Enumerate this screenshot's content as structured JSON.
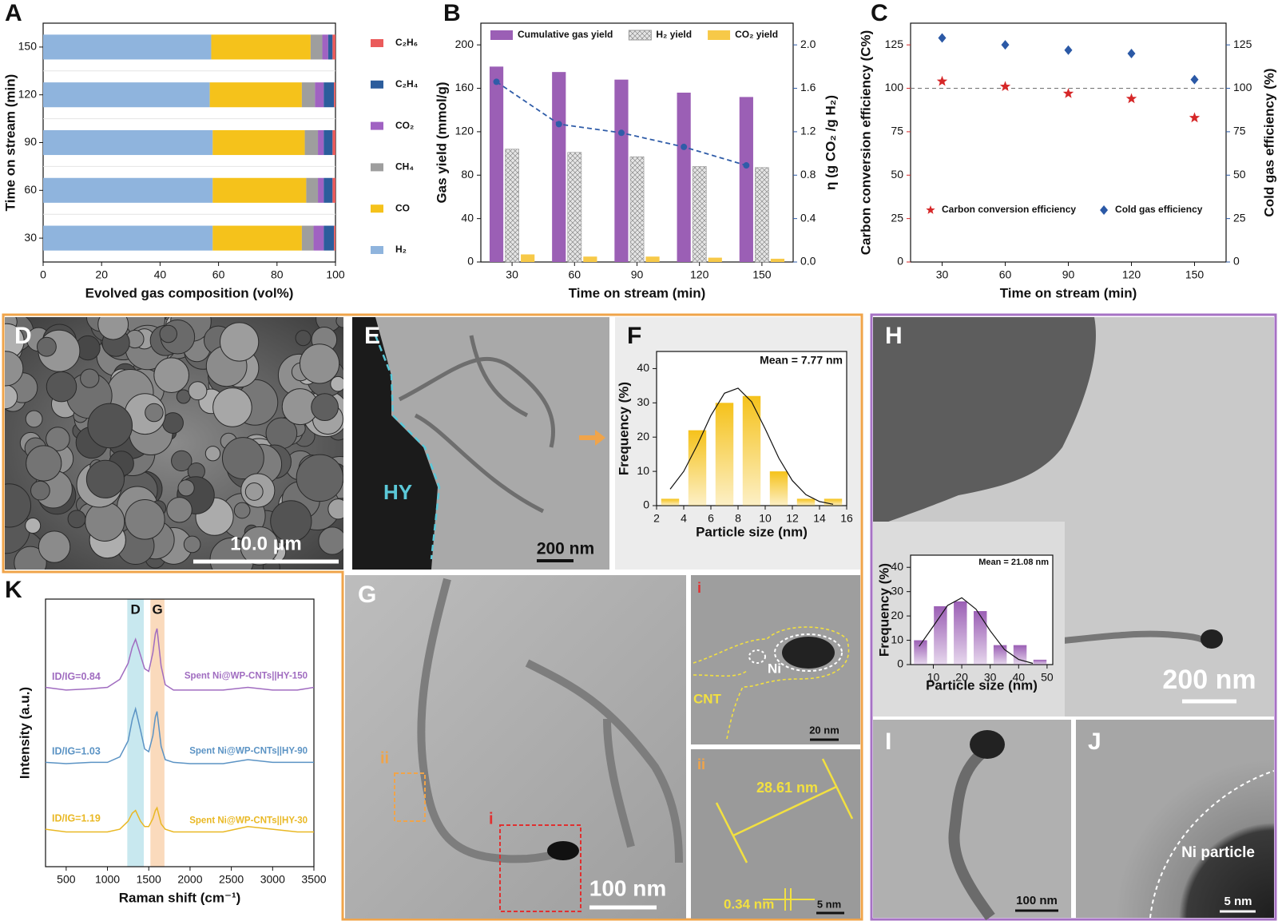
{
  "chart_data": [
    {
      "panel": "A",
      "type": "barh",
      "stacked": true,
      "categories": [
        "30",
        "60",
        "90",
        "120",
        "150"
      ],
      "xlabel": "Evolved gas composition (vol%)",
      "ylabel": "Time on stream (min)",
      "xlim": [
        0,
        100
      ],
      "xticks": [
        0,
        20,
        40,
        60,
        80,
        100
      ],
      "series": [
        {
          "name": "H₂",
          "color": "#8fb4dd",
          "values": [
            58,
            58,
            58,
            57,
            57.5
          ]
        },
        {
          "name": "CO",
          "color": "#f5c21b",
          "values": [
            30.5,
            32,
            31.5,
            31.5,
            34
          ]
        },
        {
          "name": "CH₄",
          "color": "#9e9e9e",
          "values": [
            4,
            4,
            4.5,
            4.5,
            4
          ]
        },
        {
          "name": "CO₂",
          "color": "#a062c2",
          "values": [
            3.5,
            2,
            2,
            3,
            2
          ]
        },
        {
          "name": "C₂H₄",
          "color": "#2c5d9c",
          "values": [
            3.5,
            3,
            3,
            3.5,
            1.5
          ]
        },
        {
          "name": "C₂H₆",
          "color": "#ea5b5b",
          "values": [
            0.5,
            1,
            1,
            0.5,
            1
          ]
        }
      ]
    },
    {
      "panel": "B",
      "type": "bar",
      "categories": [
        "30",
        "60",
        "90",
        "120",
        "150"
      ],
      "xlabel": "Time on stream (min)",
      "ylabel": "Gas yield (mmol/g)",
      "y2label": "η (g CO₂ /g H₂)",
      "ylim": [
        0,
        220
      ],
      "yticks": [
        0,
        40,
        80,
        120,
        160,
        200
      ],
      "y2lim": [
        0,
        2.2
      ],
      "y2ticks": [
        {
          "value": 0,
          "label": "0.0"
        },
        0.4,
        0.8,
        1.2,
        1.6,
        {
          "value": 2,
          "label": "2.0"
        }
      ],
      "legend": "top",
      "series": [
        {
          "name": "Cumulative gas yield",
          "color": "#9b5fb5",
          "values": [
            180,
            175,
            168,
            156,
            152
          ]
        },
        {
          "name": "H₂ yield",
          "color": "#e4e4e4",
          "pattern": "crosshatch",
          "values": [
            104,
            101,
            97,
            88,
            87
          ]
        },
        {
          "name": "CO₂ yield",
          "color": "#f7c948",
          "values": [
            7,
            5,
            5,
            4,
            3
          ]
        },
        {
          "type": "line",
          "axis": "y2",
          "color": "#2f5ca8",
          "dashed": true,
          "values": [
            1.66,
            1.27,
            1.19,
            1.06,
            0.89
          ]
        }
      ]
    },
    {
      "panel": "C",
      "type": "scatter",
      "categories": [
        "30",
        "60",
        "90",
        "120",
        "150"
      ],
      "xlabel": "Time on stream (min)",
      "ylabel": "Carbon conversion efficiency (C%)",
      "y2label": "Cold gas efficiency (%)",
      "ylim": [
        0,
        137.5
      ],
      "yticks": [
        0,
        25,
        50,
        75,
        100,
        125
      ],
      "y2lim": [
        0,
        137.5
      ],
      "y2ticks": [
        0,
        25,
        50,
        75,
        100,
        125
      ],
      "reference_line": 100,
      "legend": "bottom",
      "series": [
        {
          "name": "Carbon conversion efficiency",
          "color": "#d62728",
          "marker": "star",
          "values": [
            104,
            101,
            97,
            94,
            83
          ]
        },
        {
          "name": "Cold gas efficiency",
          "color": "#2b59a6",
          "marker": "diamond",
          "axis": "y2",
          "values": [
            129,
            125,
            122,
            120,
            105
          ]
        }
      ]
    },
    {
      "panel": "F",
      "type": "histogram",
      "bins": [
        2,
        4,
        6,
        8,
        10,
        12,
        14,
        16
      ],
      "values": [
        2,
        22,
        30,
        32,
        10,
        2,
        2
      ],
      "color": "#f5c21b",
      "xlim": [
        2,
        16
      ],
      "xticks": [
        2,
        4,
        6,
        8,
        10,
        12,
        14,
        16
      ],
      "ylim": [
        0,
        45
      ],
      "yticks": [
        0,
        10,
        20,
        30,
        40
      ],
      "xlabel": "Particle size (nm)",
      "ylabel": "Frequency (%)",
      "annotation": "Mean = 7.77 nm",
      "fit_curve": {
        "x": [
          3,
          4,
          5,
          6,
          7,
          8,
          9,
          10,
          11,
          12,
          13,
          14,
          15
        ],
        "y": [
          4.8,
          10.0,
          17.7,
          26.3,
          32.8,
          34.3,
          30.3,
          22.4,
          13.9,
          7.3,
          3.2,
          1.2,
          0.4
        ]
      }
    },
    {
      "type": "histogram",
      "bins": [
        2,
        9,
        16,
        23,
        30,
        37,
        44,
        51
      ],
      "values": [
        10,
        24,
        26,
        22,
        8,
        8,
        2
      ],
      "color": "#9b5fb5",
      "xlim": [
        2,
        52
      ],
      "xticks": [
        10,
        20,
        30,
        40,
        50
      ],
      "ylim": [
        0,
        45
      ],
      "yticks": [
        0,
        10,
        20,
        30,
        40
      ],
      "xlabel": "Particle size (nm)",
      "ylabel": "Frequency (%)",
      "annotation": "Mean = 21.08 nm",
      "fit_curve": {
        "x": [
          5,
          10,
          15,
          20,
          25,
          30,
          35,
          40,
          45
        ],
        "y": [
          7.5,
          15.8,
          24.3,
          27.5,
          22.8,
          13.9,
          6.2,
          2.1,
          0.5
        ]
      }
    },
    {
      "panel": "K",
      "type": "line",
      "xlim": [
        250,
        3500
      ],
      "xticks": [
        500,
        1000,
        1500,
        2000,
        2500,
        3000,
        3500
      ],
      "ylim": [
        0,
        100
      ],
      "xlabel": "Raman shift (cm⁻¹)",
      "ylabel": "Intensity (a.u.)",
      "bands": [
        {
          "label": "D",
          "range": [
            1240,
            1440
          ],
          "color": "#b5e0ea"
        },
        {
          "label": "G",
          "range": [
            1520,
            1690
          ],
          "color": "#f8cda6"
        }
      ],
      "x": [
        250,
        500,
        800,
        1000,
        1150,
        1250,
        1300,
        1340,
        1400,
        1450,
        1500,
        1550,
        1580,
        1600,
        1650,
        1700,
        1800,
        2000,
        2400,
        2700,
        3000,
        3300,
        3500
      ],
      "series": [
        {
          "name": "Spent Ni@WP-CNTs||HY-150",
          "ratio_label": "ID/IG=0.84",
          "color": "#a06cc0",
          "values": [
            67,
            66,
            66.5,
            67,
            70,
            76,
            82,
            85,
            79,
            74,
            73,
            80,
            87,
            89,
            75,
            68,
            66,
            66,
            66,
            67,
            66,
            66,
            67
          ]
        },
        {
          "name": "Spent Ni@WP-CNTs||HY-90",
          "ratio_label": "ID/IG=1.03",
          "color": "#5b93c4",
          "values": [
            39,
            38.5,
            39,
            39,
            41,
            47,
            55,
            59,
            51,
            44,
            43,
            49,
            56,
            58,
            45,
            40,
            39,
            38.5,
            38.5,
            40,
            39,
            39,
            39
          ]
        },
        {
          "name": "Spent Ni@WP-CNTs||HY-30",
          "ratio_label": "ID/IG=1.19",
          "color": "#e9b824",
          "values": [
            14,
            13,
            13,
            13,
            14,
            17,
            20,
            21,
            17,
            15,
            15,
            18,
            21,
            22,
            16,
            14,
            13,
            13,
            13,
            15,
            14,
            13,
            13
          ]
        }
      ]
    }
  ],
  "images": [
    {
      "panel": "D",
      "scale_bar": "10.0 μm"
    },
    {
      "panel": "E",
      "label": "HY",
      "scale_bar": "200 nm"
    },
    {
      "panel": "G",
      "labels": [
        "ii",
        "i"
      ],
      "scale_bar": "100 nm"
    },
    {
      "panel": "i",
      "labels": [
        "Ni",
        "CNT"
      ],
      "scale_bar": "20 nm"
    },
    {
      "panel": "ii",
      "labels": [
        "28.61 nm",
        "0.34 nm"
      ],
      "scale_bar": "5 nm"
    },
    {
      "panel": "H",
      "scale_bar": "200 nm"
    },
    {
      "panel": "I",
      "scale_bar": "100 nm"
    },
    {
      "panel": "J",
      "label": "Ni particle",
      "scale_bar": "5 nm"
    }
  ]
}
